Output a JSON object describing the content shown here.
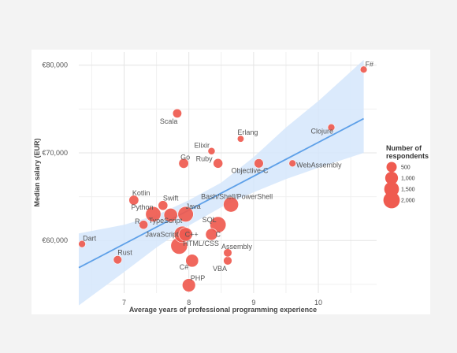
{
  "chart_data": {
    "type": "scatter",
    "xlabel": "Average years of professional programming experience",
    "ylabel": "Median salary (EUR)",
    "xlim": [
      6.3,
      10.9
    ],
    "ylim": [
      54000,
      81500
    ],
    "x_ticks": [
      7,
      8,
      9,
      10
    ],
    "y_ticks": [
      60000,
      70000,
      80000
    ],
    "y_tick_labels": [
      "€60,000",
      "€70,000",
      "€80,000"
    ],
    "grid": true,
    "point_color": "#ef5b50",
    "trend_color": "#5ea0e8",
    "band_color": "#d5e6fb",
    "trend_line": {
      "x": [
        6.3,
        10.7
      ],
      "y": [
        56900,
        73900
      ]
    },
    "confidence_band": {
      "x": [
        6.3,
        7.0,
        7.5,
        8.0,
        8.5,
        9.0,
        9.5,
        10.0,
        10.7
      ],
      "lower": [
        52600,
        56400,
        59200,
        61700,
        63800,
        65500,
        67000,
        68300,
        70000
      ],
      "upper": [
        60800,
        61800,
        62900,
        64600,
        66600,
        69500,
        72900,
        75900,
        80600
      ]
    },
    "points": [
      {
        "name": "F#",
        "x": 10.7,
        "y": 79500,
        "n": 110
      },
      {
        "name": "Clojure",
        "x": 10.2,
        "y": 72900,
        "n": 120
      },
      {
        "name": "Erlang",
        "x": 8.8,
        "y": 71600,
        "n": 90
      },
      {
        "name": "Elixir",
        "x": 8.35,
        "y": 70200,
        "n": 130
      },
      {
        "name": "Scala",
        "x": 7.82,
        "y": 74500,
        "n": 320
      },
      {
        "name": "Go",
        "x": 7.92,
        "y": 68800,
        "n": 440
      },
      {
        "name": "Ruby",
        "x": 8.45,
        "y": 68800,
        "n": 400
      },
      {
        "name": "Objective-C",
        "x": 9.08,
        "y": 68800,
        "n": 350
      },
      {
        "name": "WebAssembly",
        "x": 9.6,
        "y": 68800,
        "n": 110
      },
      {
        "name": "Kotlin",
        "x": 7.15,
        "y": 64600,
        "n": 430
      },
      {
        "name": "Swift",
        "x": 7.6,
        "y": 64000,
        "n": 400
      },
      {
        "name": "Bash/Shell/PowerShell",
        "x": 8.65,
        "y": 64100,
        "n": 1600
      },
      {
        "name": "Python",
        "x": 7.45,
        "y": 63000,
        "n": 1650
      },
      {
        "name": "Java",
        "x": 7.95,
        "y": 63000,
        "n": 1700
      },
      {
        "name": "TypeScript",
        "x": 7.72,
        "y": 62900,
        "n": 1200
      },
      {
        "name": "R",
        "x": 7.3,
        "y": 61800,
        "n": 300
      },
      {
        "name": "SQL",
        "x": 8.45,
        "y": 61800,
        "n": 1900
      },
      {
        "name": "JavaScript",
        "x": 7.9,
        "y": 60700,
        "n": 2000
      },
      {
        "name": "C++",
        "x": 7.95,
        "y": 60700,
        "n": 1200
      },
      {
        "name": "C",
        "x": 8.35,
        "y": 60700,
        "n": 800
      },
      {
        "name": "HTML/CSS",
        "x": 7.85,
        "y": 59400,
        "n": 2100
      },
      {
        "name": "Dart",
        "x": 6.35,
        "y": 59600,
        "n": 120
      },
      {
        "name": "Assembly",
        "x": 8.6,
        "y": 58600,
        "n": 240
      },
      {
        "name": "Rust",
        "x": 6.9,
        "y": 57800,
        "n": 250
      },
      {
        "name": "VBA",
        "x": 8.6,
        "y": 57700,
        "n": 260
      },
      {
        "name": "C#",
        "x": 8.05,
        "y": 57700,
        "n": 1000
      },
      {
        "name": "PHP",
        "x": 8.0,
        "y": 54900,
        "n": 1100
      }
    ],
    "legend": {
      "title_lines": [
        "Number of",
        "respondents"
      ],
      "entries": [
        {
          "label": "500",
          "n": 500
        },
        {
          "label": "1,000",
          "n": 1000
        },
        {
          "label": "1,500",
          "n": 1500
        },
        {
          "label": "2,000",
          "n": 2000
        }
      ],
      "position": "right"
    }
  }
}
